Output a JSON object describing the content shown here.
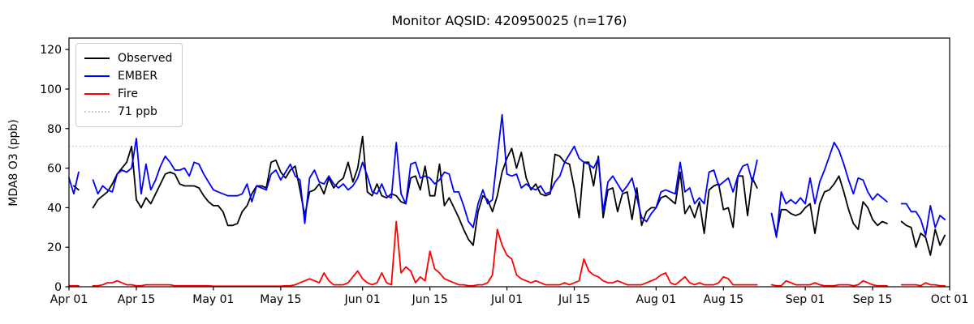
{
  "title": "Monitor AQSID: 420950025 (n=176)",
  "chart_data": {
    "type": "line",
    "title": "Monitor AQSID: 420950025 (n=176)",
    "xlabel": "",
    "ylabel": "MDA8 O3 (ppb)",
    "grid": false,
    "legend_position": "upper-left",
    "n_days": 183,
    "x_start": "Apr 01",
    "x_end": "Oct 01",
    "x_tick_labels": [
      "Apr 01",
      "Apr 15",
      "May 01",
      "May 15",
      "Jun 01",
      "Jun 15",
      "Jul 01",
      "Jul 15",
      "Aug 01",
      "Aug 15",
      "Sep 01",
      "Sep 15",
      "Oct 01"
    ],
    "x_tick_days": [
      0,
      14,
      30,
      44,
      61,
      75,
      91,
      105,
      122,
      136,
      153,
      167,
      183
    ],
    "y_ticks": [
      0,
      20,
      40,
      60,
      80,
      100,
      120
    ],
    "ylim": [
      0,
      125.8
    ],
    "reference_line": {
      "label": "71 ppb",
      "value": 71,
      "color": "#cccccc",
      "style": "dotted"
    },
    "series": [
      {
        "name": "Observed",
        "color": "#000000",
        "values": [
          null,
          51,
          49,
          null,
          null,
          40,
          44,
          46,
          48,
          52,
          57,
          60,
          63,
          71,
          44,
          40,
          45,
          42,
          47,
          52,
          57,
          58,
          57,
          52,
          51,
          51,
          51,
          50,
          46,
          43,
          41,
          41,
          38,
          31,
          31,
          32,
          38,
          41,
          47,
          51,
          51,
          50,
          63,
          64,
          58,
          55,
          59,
          61,
          49,
          36,
          48,
          49,
          52,
          47,
          55,
          50,
          53,
          55,
          63,
          53,
          60,
          76,
          48,
          46,
          52,
          46,
          45,
          47,
          46,
          43,
          42,
          55,
          56,
          49,
          61,
          46,
          46,
          62,
          41,
          45,
          40,
          35,
          29,
          24,
          21,
          38,
          46,
          44,
          38,
          46,
          58,
          65,
          70,
          60,
          68,
          55,
          49,
          52,
          47,
          46,
          47,
          67,
          66,
          63,
          62,
          50,
          35,
          63,
          63,
          51,
          66,
          35,
          49,
          50,
          38,
          47,
          48,
          34,
          50,
          31,
          38,
          40,
          40,
          45,
          46,
          44,
          42,
          58,
          37,
          41,
          35,
          43,
          27,
          49,
          51,
          52,
          39,
          40,
          30,
          56,
          56,
          36,
          55,
          50,
          null,
          null,
          37,
          26,
          39,
          39,
          37,
          36,
          37,
          40,
          42,
          27,
          42,
          48,
          49,
          52,
          56,
          48,
          39,
          32,
          29,
          43,
          40,
          34,
          31,
          33,
          32,
          null,
          null,
          33,
          31,
          30,
          20,
          27,
          25,
          16,
          29,
          21,
          26
        ]
      },
      {
        "name": "EMBER",
        "color": "#0000ff",
        "values": [
          55,
          47,
          58,
          null,
          null,
          54,
          47,
          51,
          49,
          48,
          57,
          59,
          58,
          60,
          75,
          47,
          62,
          49,
          54,
          61,
          66,
          63,
          59,
          59,
          60,
          56,
          63,
          62,
          57,
          53,
          49,
          48,
          47,
          46,
          46,
          46,
          47,
          52,
          43,
          51,
          50,
          49,
          57,
          59,
          54,
          58,
          62,
          56,
          54,
          32,
          55,
          59,
          53,
          52,
          56,
          52,
          50,
          52,
          49,
          51,
          55,
          63,
          56,
          48,
          47,
          52,
          46,
          45,
          73,
          47,
          42,
          62,
          63,
          55,
          56,
          55,
          52,
          54,
          58,
          57,
          48,
          48,
          41,
          33,
          30,
          42,
          49,
          42,
          44,
          66,
          87,
          57,
          56,
          57,
          50,
          52,
          50,
          49,
          51,
          47,
          48,
          53,
          56,
          63,
          67,
          71,
          65,
          63,
          62,
          60,
          65,
          38,
          53,
          56,
          52,
          48,
          51,
          55,
          45,
          35,
          33,
          37,
          40,
          48,
          49,
          48,
          47,
          63,
          48,
          50,
          42,
          45,
          42,
          58,
          59,
          51,
          53,
          55,
          48,
          56,
          61,
          62,
          53,
          64,
          null,
          null,
          37,
          25,
          48,
          42,
          44,
          42,
          45,
          42,
          55,
          42,
          53,
          59,
          66,
          73,
          69,
          62,
          54,
          47,
          55,
          54,
          48,
          44,
          47,
          45,
          43,
          null,
          null,
          42,
          42,
          38,
          38,
          34,
          26,
          41,
          30,
          36,
          34
        ]
      },
      {
        "name": "Fire",
        "color": "#ff0000",
        "values": [
          0.5,
          0.5,
          0.5,
          null,
          null,
          0.5,
          0.5,
          1,
          2,
          2,
          3,
          2,
          1,
          1,
          0.5,
          0.5,
          1,
          1,
          1,
          1,
          1,
          1,
          0.5,
          0.5,
          0.5,
          0.5,
          0.5,
          0.5,
          0.5,
          0.5,
          0.3,
          0.3,
          0.3,
          0.3,
          0.3,
          0.3,
          0.3,
          0.3,
          0.3,
          0.3,
          0.3,
          0.3,
          0.3,
          0.3,
          0.3,
          0.5,
          0.5,
          1,
          2,
          3,
          4,
          3,
          2,
          7,
          3,
          1,
          1,
          1,
          2,
          5,
          8,
          4,
          2,
          1,
          2,
          7,
          2,
          1,
          33,
          7,
          10,
          8,
          2,
          5,
          3,
          18,
          9,
          7,
          4,
          3,
          2,
          1,
          1,
          0.5,
          0.5,
          1,
          1,
          2,
          6,
          29,
          21,
          16,
          14,
          6,
          4,
          3,
          2,
          3,
          2,
          1,
          1,
          1,
          1,
          2,
          1,
          2,
          3,
          14,
          8,
          6,
          5,
          3,
          2,
          2,
          3,
          2,
          1,
          1,
          1,
          1,
          2,
          3,
          4,
          6,
          7,
          2,
          1,
          3,
          5,
          2,
          1,
          2,
          1,
          1,
          1,
          2,
          5,
          4,
          1,
          1,
          1,
          1,
          1,
          1,
          null,
          null,
          1,
          0.5,
          0.5,
          3,
          2,
          1,
          1,
          1,
          1,
          2,
          1,
          0.5,
          0.5,
          0.5,
          1,
          1,
          1,
          0.5,
          1,
          3,
          2,
          1,
          0.5,
          0.5,
          0.5,
          null,
          null,
          1,
          1,
          1,
          1,
          0.5,
          2,
          1,
          1,
          0.5,
          0.5
        ]
      }
    ]
  }
}
